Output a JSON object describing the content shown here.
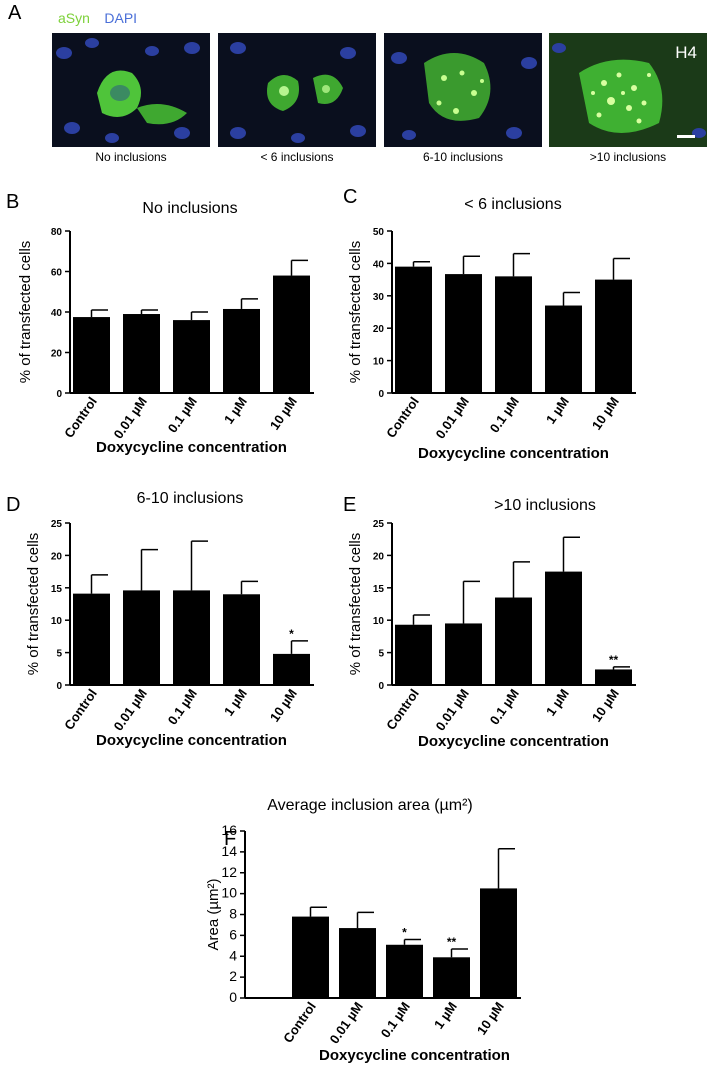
{
  "panel_a": {
    "letter": "A",
    "legend": [
      {
        "label": "aSyn",
        "color": "#7dd13a"
      },
      {
        "label": "DAPI",
        "color": "#4a6fd8"
      }
    ],
    "cell_line_label": "H4",
    "captions": [
      "No inclusions",
      "< 6 inclusions",
      "6-10 inclusions",
      ">10 inclusions"
    ]
  },
  "chart_data": [
    {
      "panel": "B",
      "type": "bar",
      "title": "No inclusions",
      "xlabel": "Doxycycline concentration",
      "ylabel": "% of transfected cells",
      "categories": [
        "Control",
        "0.01 µM",
        "0.1 µM",
        "1 µM",
        "10 µM"
      ],
      "values": [
        37.5,
        39,
        36,
        41.5,
        58
      ],
      "errors": [
        3.5,
        2,
        4,
        5,
        7.5
      ],
      "significance": [
        "",
        "",
        "",
        "",
        ""
      ],
      "ylim": [
        0,
        80
      ],
      "yticks": [
        0,
        20,
        40,
        60,
        80
      ]
    },
    {
      "panel": "C",
      "type": "bar",
      "title": "< 6 inclusions",
      "xlabel": "Doxycycline concentration",
      "ylabel": "% of transfected cells",
      "categories": [
        "Control",
        "0.01 µM",
        "0.1 µM",
        "1 µM",
        "10 µM"
      ],
      "values": [
        39,
        36.7,
        36,
        27,
        35
      ],
      "errors": [
        1.5,
        5.5,
        7,
        4,
        6.5
      ],
      "significance": [
        "",
        "",
        "",
        "",
        ""
      ],
      "ylim": [
        0,
        50
      ],
      "yticks": [
        0,
        10,
        20,
        30,
        40,
        50
      ]
    },
    {
      "panel": "D",
      "type": "bar",
      "title": "6-10 inclusions",
      "xlabel": "Doxycycline concentration",
      "ylabel": "% of transfected cells",
      "categories": [
        "Control",
        "0.01 µM",
        "0.1 µM",
        "1 µM",
        "10 µM"
      ],
      "values": [
        14.1,
        14.6,
        14.6,
        14,
        4.8
      ],
      "errors": [
        2.9,
        6.3,
        7.6,
        2,
        2
      ],
      "significance": [
        "",
        "",
        "",
        "",
        "*"
      ],
      "ylim": [
        0,
        25
      ],
      "yticks": [
        0,
        5,
        10,
        15,
        20,
        25
      ]
    },
    {
      "panel": "E",
      "type": "bar",
      "title": ">10 inclusions",
      "xlabel": "Doxycycline concentration",
      "ylabel": "% of transfected cells",
      "categories": [
        "Control",
        "0.01 µM",
        "0.1 µM",
        "1 µM",
        "10 µM"
      ],
      "values": [
        9.3,
        9.5,
        13.5,
        17.5,
        2.4
      ],
      "errors": [
        1.5,
        6.5,
        5.5,
        5.3,
        0.4
      ],
      "significance": [
        "",
        "",
        "",
        "",
        "**"
      ],
      "ylim": [
        0,
        25
      ],
      "yticks": [
        0,
        5,
        10,
        15,
        20,
        25
      ]
    },
    {
      "panel": "F",
      "type": "bar",
      "title": "Average inclusion area (µm²)",
      "xlabel": "Doxycycline concentration",
      "ylabel": "Area (µm²)",
      "categories": [
        "Control",
        "0.01 µM",
        "0.1 µM",
        "1 µM",
        "10 µM"
      ],
      "values": [
        7.8,
        6.7,
        5.1,
        3.9,
        10.5
      ],
      "errors": [
        0.9,
        1.5,
        0.5,
        0.8,
        3.8
      ],
      "significance": [
        "",
        "",
        "*",
        "**",
        ""
      ],
      "ylim": [
        0,
        16
      ],
      "yticks": [
        0,
        2,
        4,
        6,
        8,
        10,
        12,
        14,
        16
      ]
    }
  ]
}
